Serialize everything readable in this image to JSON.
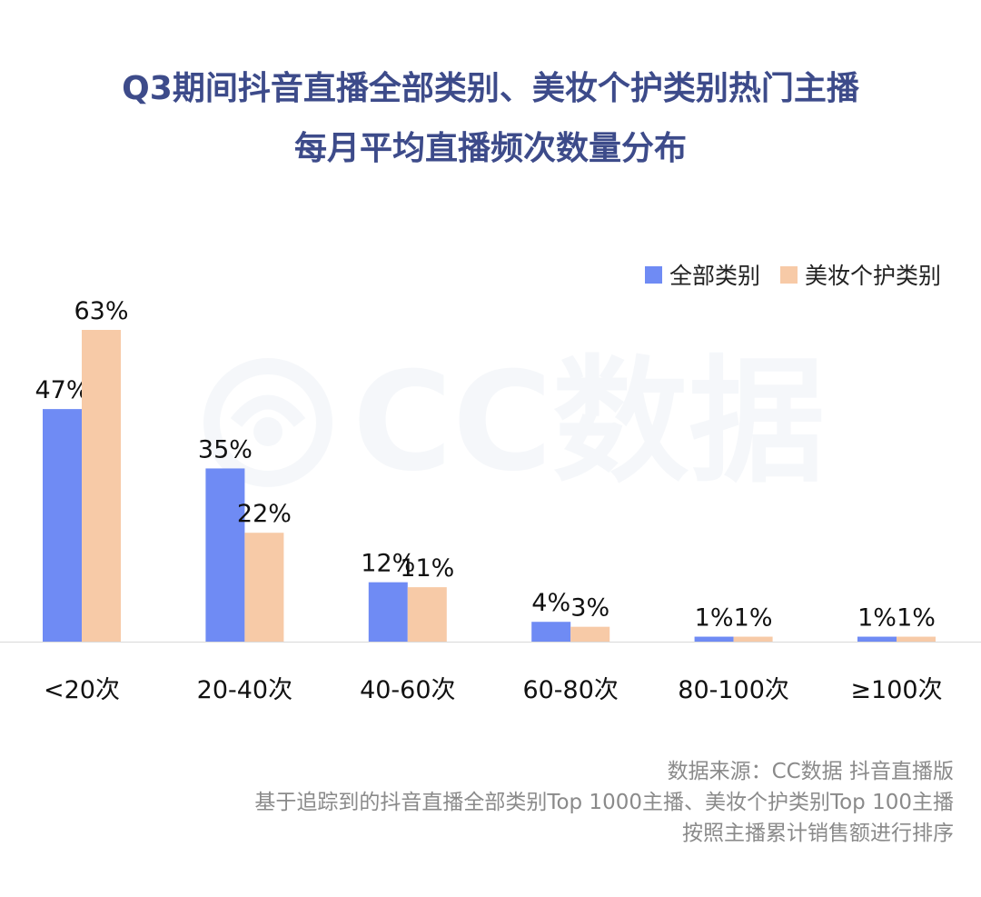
{
  "title": {
    "line1": "Q3期间抖音直播全部类别、美妆个护类别热门主播",
    "line2": "每月平均直播频次数量分布"
  },
  "watermark": {
    "text": "CC数据",
    "icon": "cc-logo-icon"
  },
  "source": {
    "line1": "数据来源：CC数据 抖音直播版",
    "line2": "基于追踪到的抖音直播全部类别Top 1000主播、美妆个护类别Top 100主播",
    "line3": "按照主播累计销售额进行排序"
  },
  "colors": {
    "all": "#6f8bf4",
    "beauty": "#f7caa7",
    "title": "#3d4b8a"
  },
  "chart_data": {
    "type": "bar",
    "title": "Q3期间抖音直播全部类别、美妆个护类别热门主播 每月平均直播频次数量分布",
    "categories": [
      "<20次",
      "20-40次",
      "40-60次",
      "60-80次",
      "80-100次",
      "≥100次"
    ],
    "series": [
      {
        "name": "全部类别",
        "values": [
          47,
          35,
          12,
          4,
          1,
          1
        ],
        "labels": [
          "47%",
          "35%",
          "12%",
          "4%",
          "1%",
          "1%"
        ]
      },
      {
        "name": "美妆个护类别",
        "values": [
          63,
          22,
          11,
          3,
          1,
          1
        ],
        "labels": [
          "63%",
          "22%",
          "11%",
          "3%",
          "1%",
          "1%"
        ]
      }
    ],
    "unit": "%",
    "ylim": [
      0,
      63
    ],
    "grid": false,
    "legend": "top-right"
  }
}
